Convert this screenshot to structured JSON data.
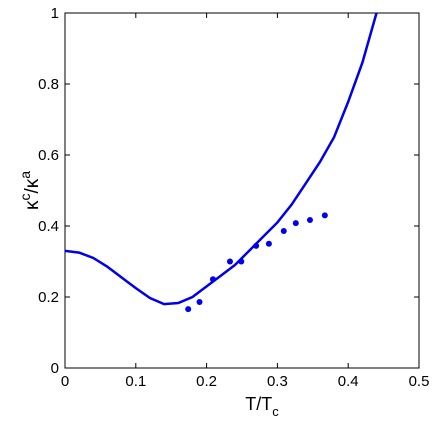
{
  "chart_data": {
    "type": "line",
    "xlabel": [
      "T/T",
      "c"
    ],
    "ylabel": [
      "κ",
      "c",
      "/κ",
      "a"
    ],
    "xlim": [
      0,
      0.5
    ],
    "ylim": [
      0,
      1
    ],
    "xticks": [
      0,
      0.1,
      0.2,
      0.3,
      0.4,
      0.5
    ],
    "yticks": [
      0,
      0.2,
      0.4,
      0.6,
      0.8,
      1
    ],
    "series": [
      {
        "type": "line",
        "color": "#0000ee",
        "x": [
          0,
          0.02,
          0.04,
          0.06,
          0.08,
          0.1,
          0.12,
          0.14,
          0.16,
          0.18,
          0.2,
          0.22,
          0.24,
          0.26,
          0.28,
          0.3,
          0.32,
          0.34,
          0.36,
          0.38,
          0.4,
          0.42,
          0.44
        ],
        "values": [
          0.33,
          0.325,
          0.31,
          0.285,
          0.255,
          0.225,
          0.197,
          0.18,
          0.183,
          0.2,
          0.23,
          0.26,
          0.29,
          0.33,
          0.37,
          0.41,
          0.46,
          0.52,
          0.58,
          0.65,
          0.75,
          0.86,
          1.0
        ]
      },
      {
        "type": "scatter",
        "color": "#0000ee",
        "x": [
          0.174,
          0.19,
          0.209,
          0.233,
          0.249,
          0.27,
          0.288,
          0.309,
          0.326,
          0.346,
          0.367
        ],
        "values": [
          0.166,
          0.186,
          0.25,
          0.3,
          0.3,
          0.344,
          0.35,
          0.386,
          0.408,
          0.417,
          0.43
        ]
      }
    ]
  }
}
